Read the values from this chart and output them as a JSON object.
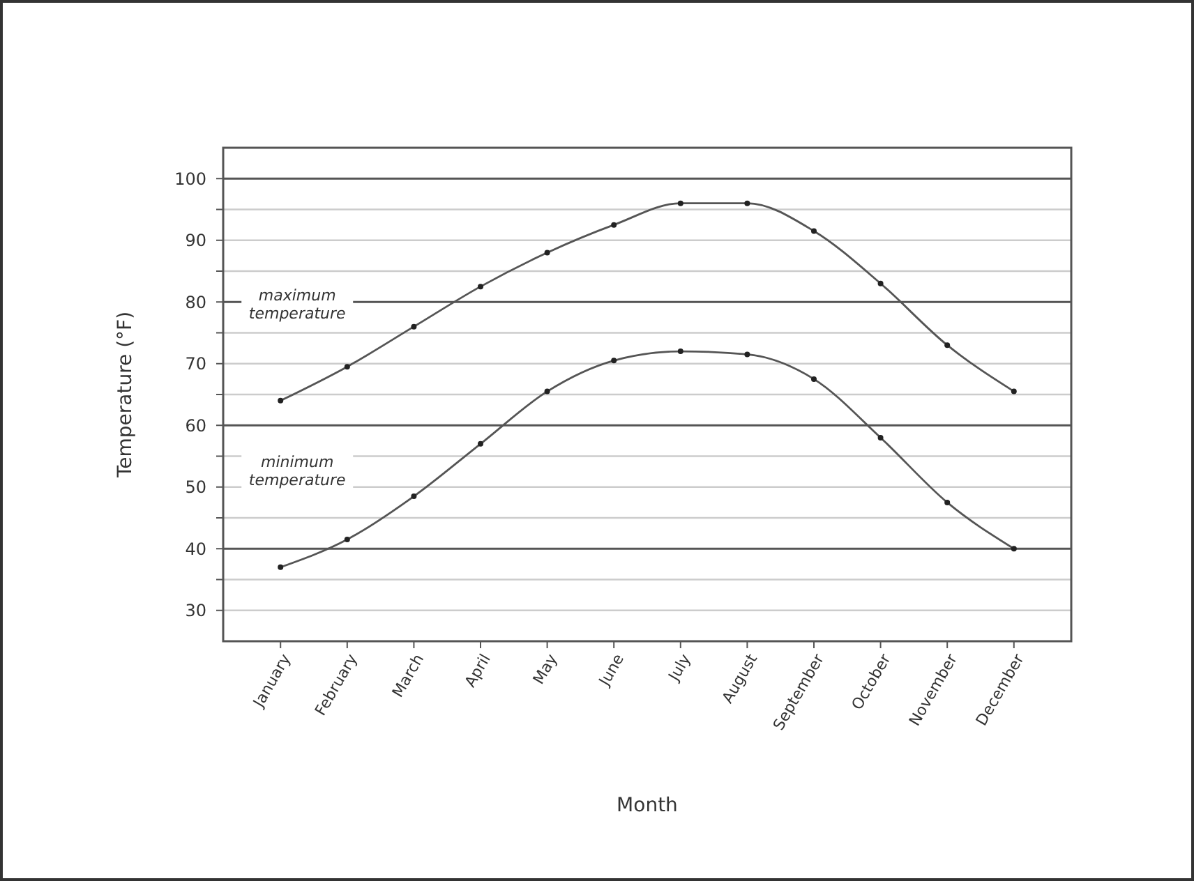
{
  "chart_data": {
    "type": "line",
    "xlabel": "Month",
    "ylabel": "Temperature (°F)",
    "categories": [
      "January",
      "February",
      "March",
      "April",
      "May",
      "June",
      "July",
      "August",
      "September",
      "October",
      "November",
      "December"
    ],
    "series": [
      {
        "name": "maximum temperature",
        "color": "#555555",
        "values": [
          64,
          69.5,
          76,
          82.5,
          88,
          92.5,
          96,
          96,
          91.5,
          83,
          73,
          65.5
        ]
      },
      {
        "name": "minimum temperature",
        "color": "#555555",
        "values": [
          37,
          41.5,
          48.5,
          57,
          65.5,
          70.5,
          72,
          71.5,
          67.5,
          58,
          47.5,
          40
        ]
      }
    ],
    "ylim": [
      25,
      105
    ],
    "yticks": [
      30,
      {
        "value": 35,
        "label": null
      },
      40,
      {
        "value": 45,
        "label": null
      },
      50,
      {
        "value": 55,
        "label": null
      },
      60,
      {
        "value": 65,
        "label": null
      },
      70,
      {
        "value": 75,
        "label": null
      },
      80,
      {
        "value": 85,
        "label": null
      },
      90,
      {
        "value": 95,
        "label": null
      },
      100
    ],
    "grid": "y",
    "marker": "circle",
    "line_style": "solid"
  }
}
